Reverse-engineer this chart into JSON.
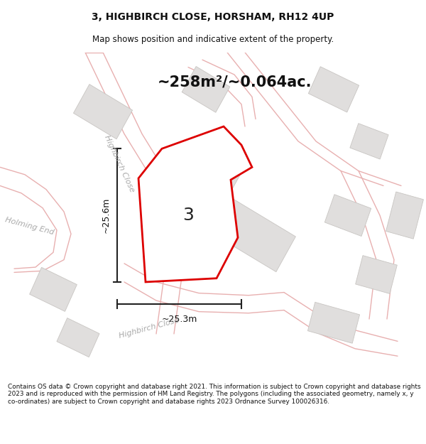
{
  "title_line1": "3, HIGHBIRCH CLOSE, HORSHAM, RH12 4UP",
  "title_line2": "Map shows position and indicative extent of the property.",
  "area_text": "~258m²/~0.064ac.",
  "width_text": "~25.3m",
  "height_text": "~25.6m",
  "property_number": "3",
  "footer_text": "Contains OS data © Crown copyright and database right 2021. This information is subject to Crown copyright and database rights 2023 and is reproduced with the permission of HM Land Registry. The polygons (including the associated geometry, namely x, y co-ordinates) are subject to Crown copyright and database rights 2023 Ordnance Survey 100026316.",
  "bg_color": "#f5f4f2",
  "plot_fill_color": "#ffffff",
  "road_stroke_color": "#e8b0b0",
  "building_color": "#e0dedd",
  "building_edge_color": "#c8c5c2",
  "red_outline_color": "#dd0000",
  "dim_line_color": "#222222",
  "road_label_color": "#aaaaaa",
  "title_fontsize": 10,
  "subtitle_fontsize": 8.5,
  "area_fontsize": 15,
  "dim_fontsize": 9,
  "number_fontsize": 18
}
